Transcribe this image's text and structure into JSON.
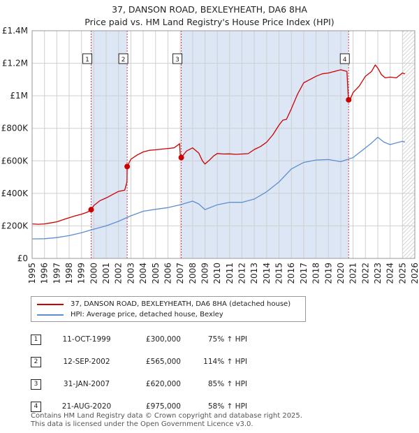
{
  "title_line1": "37, DANSON ROAD, BEXLEYHEATH, DA6 8HA",
  "title_line2": "Price paid vs. HM Land Registry's House Price Index (HPI)",
  "legend": {
    "property": "37, DANSON ROAD, BEXLEYHEATH, DA6 8HA (detached house)",
    "hpi": "HPI: Average price, detached house, Bexley"
  },
  "colors": {
    "property": "#cc0000",
    "hpi": "#5b8fd1",
    "shade": "#dde6f5",
    "grid": "#cfcfcf"
  },
  "sales": [
    {
      "num": "1",
      "date": "11-OCT-1999",
      "price": "£300,000",
      "hpi_change": "75% ↑ HPI"
    },
    {
      "num": "2",
      "date": "12-SEP-2002",
      "price": "£565,000",
      "hpi_change": "114% ↑ HPI"
    },
    {
      "num": "3",
      "date": "31-JAN-2007",
      "price": "£620,000",
      "hpi_change": "85% ↑ HPI"
    },
    {
      "num": "4",
      "date": "21-AUG-2020",
      "price": "£975,000",
      "hpi_change": "58% ↑ HPI"
    }
  ],
  "footer": {
    "line1": "Contains HM Land Registry data © Crown copyright and database right 2025.",
    "line2": "This data is licensed under the Open Government Licence v3.0."
  },
  "chart_data": {
    "type": "line",
    "title": "37, DANSON ROAD, BEXLEYHEATH, DA6 8HA — Price paid vs. HM Land Registry's House Price Index (HPI)",
    "xlim": [
      1995,
      2026
    ],
    "ylim": [
      0,
      1400000
    ],
    "x_ticks": [
      "1995",
      "1996",
      "1997",
      "1998",
      "1999",
      "2000",
      "2001",
      "2002",
      "2003",
      "2004",
      "2005",
      "2006",
      "2007",
      "2008",
      "2009",
      "2010",
      "2011",
      "2012",
      "2013",
      "2014",
      "2015",
      "2016",
      "2017",
      "2018",
      "2019",
      "2020",
      "2021",
      "2022",
      "2023",
      "2024",
      "2025",
      "2026"
    ],
    "y_ticks": [
      {
        "value": 0,
        "label": "£0"
      },
      {
        "value": 200000,
        "label": "£200K"
      },
      {
        "value": 400000,
        "label": "£400K"
      },
      {
        "value": 600000,
        "label": "£600K"
      },
      {
        "value": 800000,
        "label": "£800K"
      },
      {
        "value": 1000000,
        "label": "£1M"
      },
      {
        "value": 1200000,
        "label": "£1.2M"
      },
      {
        "value": 1400000,
        "label": "£1.4M"
      }
    ],
    "shaded_ranges": [
      [
        1999.78,
        2002.7
      ],
      [
        2007.08,
        2020.64
      ]
    ],
    "hatched_from": 2025.0,
    "sale_markers": [
      {
        "label": "1",
        "x": 1999.78,
        "y": 300000
      },
      {
        "label": "2",
        "x": 2002.7,
        "y": 565000
      },
      {
        "label": "3",
        "x": 2007.08,
        "y": 620000
      },
      {
        "label": "4",
        "x": 2020.64,
        "y": 975000
      }
    ],
    "series": [
      {
        "name": "37, DANSON ROAD, BEXLEYHEATH, DA6 8HA (detached house)",
        "x": [
          1995,
          1995.5,
          1996,
          1996.5,
          1997,
          1997.5,
          1998,
          1998.5,
          1999,
          1999.5,
          1999.78,
          2000,
          2000.5,
          2001,
          2001.5,
          2002,
          2002.5,
          2002.68,
          2002.7,
          2003,
          2003.5,
          2004,
          2004.5,
          2005,
          2005.5,
          2006,
          2006.5,
          2006.95,
          2007.0,
          2007.08,
          2007.5,
          2008,
          2008.5,
          2008.8,
          2009,
          2009.3,
          2009.7,
          2010,
          2010.5,
          2011,
          2011.5,
          2012,
          2012.5,
          2013,
          2013.5,
          2014,
          2014.5,
          2015,
          2015.3,
          2015.6,
          2016,
          2016.5,
          2017,
          2017.5,
          2018,
          2018.5,
          2019,
          2019.5,
          2020,
          2020.5,
          2020.6,
          2020.64,
          2020.8,
          2021,
          2021.5,
          2022,
          2022.5,
          2022.8,
          2023,
          2023.3,
          2023.6,
          2024,
          2024.5,
          2025,
          2025.2
        ],
        "values": [
          212000,
          210000,
          212000,
          218000,
          225000,
          238000,
          250000,
          262000,
          272000,
          285000,
          300000,
          325000,
          355000,
          372000,
          392000,
          412000,
          420000,
          470000,
          565000,
          610000,
          635000,
          655000,
          665000,
          668000,
          672000,
          676000,
          680000,
          705000,
          640000,
          620000,
          660000,
          680000,
          648000,
          600000,
          580000,
          600000,
          630000,
          645000,
          642000,
          643000,
          640000,
          642000,
          644000,
          670000,
          688000,
          715000,
          760000,
          820000,
          850000,
          855000,
          920000,
          1010000,
          1080000,
          1100000,
          1120000,
          1135000,
          1140000,
          1150000,
          1160000,
          1150000,
          1010000,
          975000,
          985000,
          1020000,
          1060000,
          1120000,
          1150000,
          1190000,
          1170000,
          1130000,
          1110000,
          1115000,
          1110000,
          1140000,
          1135000
        ]
      },
      {
        "name": "HPI: Average price, detached house, Bexley",
        "x": [
          1995,
          1996,
          1997,
          1998,
          1999,
          2000,
          2001,
          2002,
          2003,
          2004,
          2005,
          2006,
          2007,
          2008,
          2008.5,
          2009,
          2010,
          2011,
          2012,
          2013,
          2014,
          2015,
          2016,
          2017,
          2018,
          2019,
          2020,
          2021,
          2022,
          2022.5,
          2023,
          2023.5,
          2024,
          2025,
          2025.2
        ],
        "values": [
          120000,
          121000,
          128000,
          140000,
          158000,
          180000,
          200000,
          228000,
          262000,
          290000,
          302000,
          312000,
          330000,
          352000,
          335000,
          300000,
          330000,
          345000,
          345000,
          365000,
          410000,
          470000,
          550000,
          590000,
          605000,
          608000,
          595000,
          620000,
          680000,
          710000,
          745000,
          715000,
          700000,
          720000,
          715000
        ]
      }
    ]
  }
}
